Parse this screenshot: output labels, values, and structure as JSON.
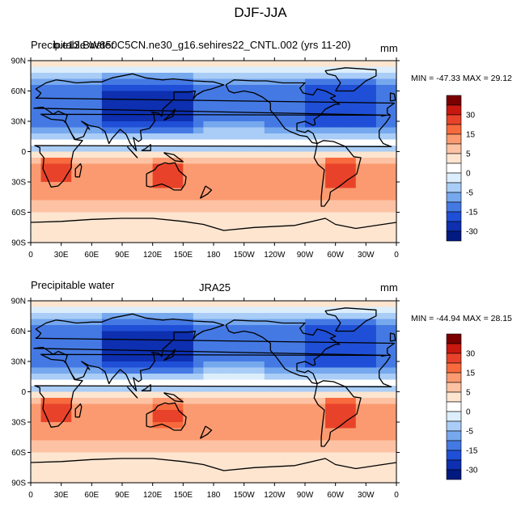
{
  "page_title": "DJF-JJA",
  "chart_data": [
    {
      "type": "heatmap",
      "title": "Precipitable water",
      "overlay_title": "b.e13.BW850C5CN.ne30_g16.sehires22_CNTL.002 (yrs 11-20)",
      "center_label": "",
      "units": "mm",
      "stats": "MIN = -47.33 MAX =  29.12",
      "min": -47.33,
      "max": 29.12,
      "xlim": [
        0,
        360
      ],
      "ylim": [
        -90,
        90
      ],
      "xticks": [
        "0",
        "30E",
        "60E",
        "90E",
        "120E",
        "150E",
        "180",
        "150W",
        "120W",
        "90W",
        "60W",
        "30W",
        "0"
      ],
      "yticks": [
        "90N",
        "60N",
        "30N",
        "0",
        "30S",
        "60S",
        "90S"
      ],
      "colorbar": {
        "labels": [
          "30",
          "15",
          "5",
          "0",
          "-5",
          "-15",
          "-30"
        ],
        "colors": [
          "#7a0000",
          "#c8180f",
          "#e8432a",
          "#f76a3d",
          "#fb9a70",
          "#fdc2a3",
          "#fde5d0",
          "#ffffff",
          "#dceefc",
          "#a9cdf6",
          "#76a8ee",
          "#4479e4",
          "#1f4fd6",
          "#0d2fb0",
          "#001a80"
        ]
      },
      "field_notes": "Positive (red) over Southern Hemisphere tropics/subtropics (strongest over southern Africa, Australia, South America); negative (blue) over Northern Hemisphere 10N-70N (strongest over Asia, North Atlantic, North America)"
    },
    {
      "type": "heatmap",
      "title": "Precipitable water",
      "overlay_title": "",
      "center_label": "JRA25",
      "units": "mm",
      "stats": "MIN = -44.94 MAX =  28.15",
      "min": -44.94,
      "max": 28.15,
      "xlim": [
        0,
        360
      ],
      "ylim": [
        -90,
        90
      ],
      "xticks": [
        "0",
        "30E",
        "60E",
        "90E",
        "120E",
        "150E",
        "180",
        "150W",
        "120W",
        "90W",
        "60W",
        "30W",
        "0"
      ],
      "yticks": [
        "90N",
        "60N",
        "30N",
        "0",
        "30S",
        "60S",
        "90S"
      ],
      "colorbar": {
        "labels": [
          "30",
          "15",
          "5",
          "0",
          "-5",
          "-15",
          "-30"
        ],
        "colors": [
          "#7a0000",
          "#c8180f",
          "#e8432a",
          "#f76a3d",
          "#fb9a70",
          "#fdc2a3",
          "#fde5d0",
          "#ffffff",
          "#dceefc",
          "#a9cdf6",
          "#76a8ee",
          "#4479e4",
          "#1f4fd6",
          "#0d2fb0",
          "#001a80"
        ]
      },
      "field_notes": "Similar pattern: positive over southern tropics and subtropics, negative across northern mid-latitudes, near zero at high latitudes"
    }
  ]
}
